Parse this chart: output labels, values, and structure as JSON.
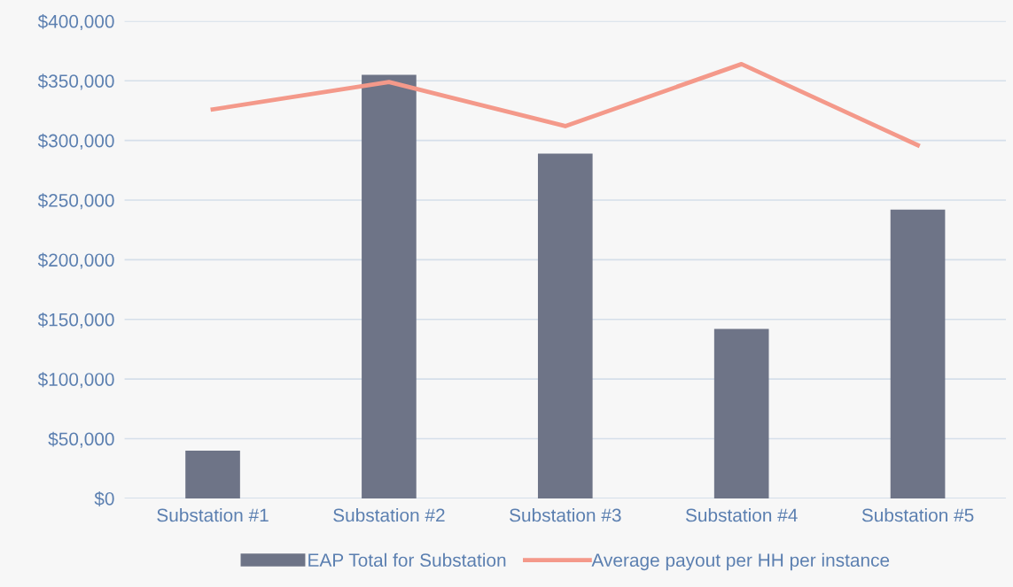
{
  "chart_data": {
    "type": "bar",
    "categories": [
      "Substation #1",
      "Substation #2",
      "Substation #3",
      "Substation #4",
      "Substation #5"
    ],
    "series": [
      {
        "name": "EAP Total for Substation",
        "color": "#6e7487",
        "values": [
          40000,
          355000,
          289000,
          142000,
          242000
        ]
      },
      {
        "name": "Average payout per HH per instance",
        "type": "line",
        "color": "#f4998a",
        "values": [
          326000,
          349000,
          312000,
          364000,
          296000
        ]
      }
    ],
    "ylim": [
      0,
      400000
    ],
    "yticks": [
      {
        "value": 0,
        "label": "$0"
      },
      {
        "value": 50000,
        "label": "$50,000"
      },
      {
        "value": 100000,
        "label": "$100,000"
      },
      {
        "value": 150000,
        "label": "$150,000"
      },
      {
        "value": 200000,
        "label": "$200,000"
      },
      {
        "value": 250000,
        "label": "$250,000"
      },
      {
        "value": 300000,
        "label": "$300,000"
      },
      {
        "value": 350000,
        "label": "$350,000"
      },
      {
        "value": 400000,
        "label": "$400,000"
      }
    ],
    "grid": "y",
    "legend": "bottom",
    "marker": "none",
    "line_style": "solid"
  }
}
